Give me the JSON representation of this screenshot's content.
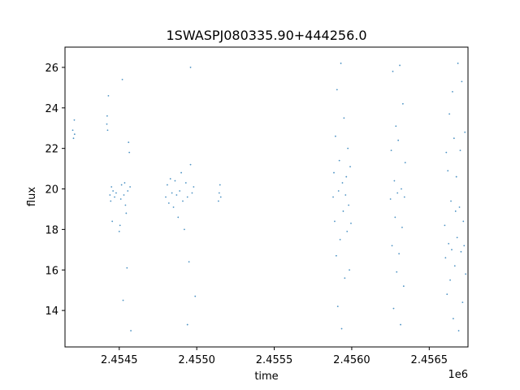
{
  "chart_data": {
    "type": "scatter",
    "title": "1SWASPJ080335.90+444256.0",
    "xlabel": "time",
    "ylabel": "flux",
    "x_offset_label": "1e6",
    "xlim": [
      2454150,
      2456750
    ],
    "ylim": [
      12.2,
      27.0
    ],
    "x_ticks": [
      2454500,
      2455000,
      2455500,
      2456000,
      2456500
    ],
    "x_tick_labels": [
      "2.4545",
      "2.4550",
      "2.4555",
      "2.4560",
      "2.4565"
    ],
    "y_ticks": [
      14,
      16,
      18,
      20,
      22,
      24,
      26
    ],
    "y_tick_labels": [
      "14",
      "16",
      "18",
      "20",
      "22",
      "24",
      "26"
    ],
    "marker_color": "#1f77b4",
    "grid": false,
    "series": [
      {
        "points": [
          [
            2454200,
            22.9
          ],
          [
            2454205,
            22.5
          ],
          [
            2454210,
            23.4
          ],
          [
            2454212,
            22.7
          ],
          [
            2454420,
            23.2
          ],
          [
            2454422,
            23.6
          ],
          [
            2454425,
            22.9
          ],
          [
            2454430,
            24.6
          ],
          [
            2454440,
            19.7
          ],
          [
            2454445,
            19.4
          ],
          [
            2454450,
            20.1
          ],
          [
            2454455,
            18.4
          ],
          [
            2454460,
            19.9
          ],
          [
            2454470,
            19.6
          ],
          [
            2454480,
            19.8
          ],
          [
            2454500,
            17.9
          ],
          [
            2454505,
            18.2
          ],
          [
            2454510,
            19.5
          ],
          [
            2454515,
            20.2
          ],
          [
            2454520,
            25.4
          ],
          [
            2454525,
            14.5
          ],
          [
            2454530,
            19.7
          ],
          [
            2454535,
            20.3
          ],
          [
            2454540,
            19.2
          ],
          [
            2454545,
            18.8
          ],
          [
            2454550,
            16.1
          ],
          [
            2454555,
            19.9
          ],
          [
            2454560,
            22.3
          ],
          [
            2454565,
            21.8
          ],
          [
            2454570,
            20.1
          ],
          [
            2454575,
            13.0
          ],
          [
            2454800,
            19.6
          ],
          [
            2454810,
            20.2
          ],
          [
            2454820,
            19.3
          ],
          [
            2454830,
            20.5
          ],
          [
            2454840,
            19.8
          ],
          [
            2454850,
            19.1
          ],
          [
            2454860,
            20.4
          ],
          [
            2454870,
            19.7
          ],
          [
            2454880,
            18.6
          ],
          [
            2454890,
            19.9
          ],
          [
            2454900,
            20.8
          ],
          [
            2454910,
            19.4
          ],
          [
            2454920,
            18.0
          ],
          [
            2454930,
            20.3
          ],
          [
            2454940,
            19.6
          ],
          [
            2454950,
            16.4
          ],
          [
            2454960,
            21.2
          ],
          [
            2454970,
            19.8
          ],
          [
            2454980,
            20.1
          ],
          [
            2454990,
            14.7
          ],
          [
            2454960,
            26.0
          ],
          [
            2454940,
            13.3
          ],
          [
            2455140,
            19.4
          ],
          [
            2455145,
            19.8
          ],
          [
            2455150,
            20.2
          ],
          [
            2455155,
            19.6
          ],
          [
            2455880,
            19.6
          ],
          [
            2455885,
            20.8
          ],
          [
            2455890,
            18.4
          ],
          [
            2455895,
            22.6
          ],
          [
            2455900,
            16.7
          ],
          [
            2455905,
            24.9
          ],
          [
            2455910,
            14.2
          ],
          [
            2455915,
            19.9
          ],
          [
            2455920,
            21.4
          ],
          [
            2455925,
            17.5
          ],
          [
            2455930,
            26.2
          ],
          [
            2455935,
            13.1
          ],
          [
            2455940,
            20.3
          ],
          [
            2455945,
            18.9
          ],
          [
            2455950,
            23.5
          ],
          [
            2455955,
            15.6
          ],
          [
            2455960,
            19.7
          ],
          [
            2455965,
            20.6
          ],
          [
            2455970,
            17.9
          ],
          [
            2455975,
            22.0
          ],
          [
            2455980,
            19.2
          ],
          [
            2455985,
            16.0
          ],
          [
            2455990,
            21.1
          ],
          [
            2455995,
            18.3
          ],
          [
            2456250,
            19.5
          ],
          [
            2456255,
            21.9
          ],
          [
            2456260,
            17.2
          ],
          [
            2456265,
            25.8
          ],
          [
            2456270,
            14.1
          ],
          [
            2456275,
            20.4
          ],
          [
            2456280,
            18.6
          ],
          [
            2456285,
            23.1
          ],
          [
            2456290,
            15.9
          ],
          [
            2456295,
            19.8
          ],
          [
            2456300,
            22.4
          ],
          [
            2456305,
            16.8
          ],
          [
            2456310,
            26.1
          ],
          [
            2456315,
            13.3
          ],
          [
            2456320,
            20.0
          ],
          [
            2456325,
            18.1
          ],
          [
            2456330,
            24.2
          ],
          [
            2456335,
            15.2
          ],
          [
            2456340,
            19.6
          ],
          [
            2456345,
            21.3
          ],
          [
            2456600,
            18.2
          ],
          [
            2456605,
            16.6
          ],
          [
            2456610,
            21.8
          ],
          [
            2456615,
            14.8
          ],
          [
            2456620,
            20.9
          ],
          [
            2456625,
            17.3
          ],
          [
            2456630,
            23.7
          ],
          [
            2456635,
            15.5
          ],
          [
            2456640,
            19.4
          ],
          [
            2456645,
            17.0
          ],
          [
            2456650,
            24.8
          ],
          [
            2456655,
            13.6
          ],
          [
            2456660,
            22.5
          ],
          [
            2456665,
            16.2
          ],
          [
            2456670,
            18.9
          ],
          [
            2456675,
            20.6
          ],
          [
            2456680,
            17.6
          ],
          [
            2456685,
            26.2
          ],
          [
            2456690,
            13.0
          ],
          [
            2456695,
            19.1
          ],
          [
            2456700,
            21.9
          ],
          [
            2456705,
            16.9
          ],
          [
            2456710,
            25.3
          ],
          [
            2456715,
            14.4
          ],
          [
            2456720,
            18.4
          ],
          [
            2456725,
            17.2
          ],
          [
            2456730,
            22.8
          ],
          [
            2456735,
            15.8
          ]
        ]
      }
    ]
  }
}
